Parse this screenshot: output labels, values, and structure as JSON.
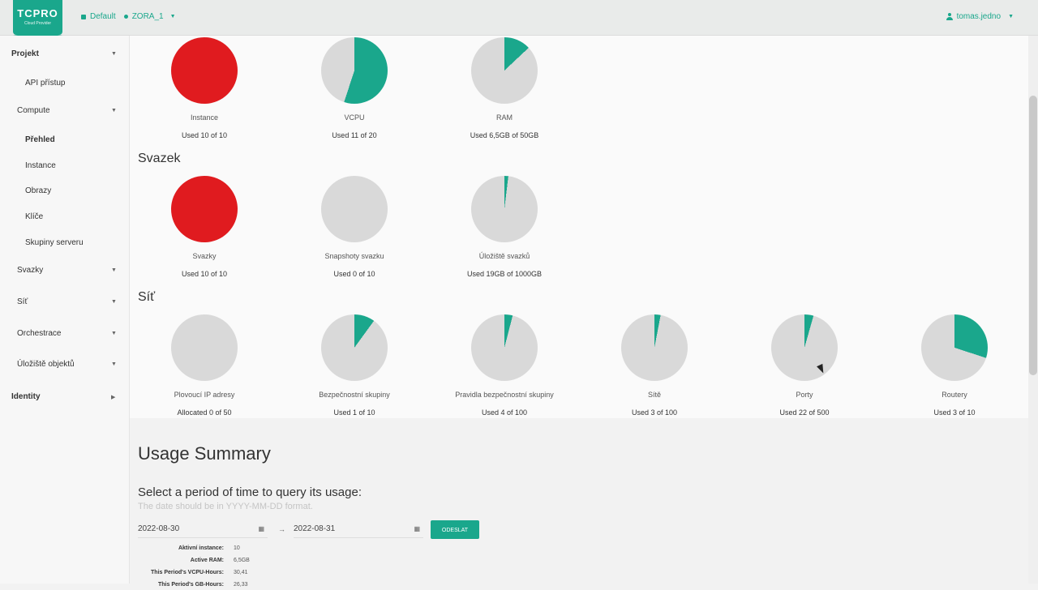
{
  "header": {
    "logo_main": "TCPRO",
    "logo_sub": "Cloud Provider",
    "domain": "Default",
    "project": "ZORA_1",
    "user": "tomas.jedno"
  },
  "sidebar": {
    "items": [
      {
        "label": "Projekt",
        "level": 0
      },
      {
        "label": "API přístup",
        "level": 2
      },
      {
        "label": "Compute",
        "level": 1
      },
      {
        "label": "Přehled",
        "level": 2
      },
      {
        "label": "Instance",
        "level": 2
      },
      {
        "label": "Obrazy",
        "level": 2
      },
      {
        "label": "Klíče",
        "level": 2
      },
      {
        "label": "Skupiny serveru",
        "level": 2
      },
      {
        "label": "Svazky",
        "level": 1
      },
      {
        "label": "Síť",
        "level": 1
      },
      {
        "label": "Orchestrace",
        "level": 1
      },
      {
        "label": "Úložiště objektů",
        "level": 1
      },
      {
        "label": "Identity",
        "level": 0
      }
    ]
  },
  "sections": {
    "volume_title": "Svazek",
    "network_title": "Síť"
  },
  "compute_pies": [
    {
      "label": "Instance",
      "used": "Used 10 of 10",
      "fraction": 1.0,
      "color": "#e01b1f"
    },
    {
      "label": "VCPU",
      "used": "Used 11 of 20",
      "fraction": 0.55,
      "color": "#1aa78c"
    },
    {
      "label": "RAM",
      "used": "Used 6,5GB of 50GB",
      "fraction": 0.13,
      "color": "#1aa78c"
    }
  ],
  "volume_pies": [
    {
      "label": "Svazky",
      "used": "Used 10 of 10",
      "fraction": 1.0,
      "color": "#e01b1f"
    },
    {
      "label": "Snapshoty svazku",
      "used": "Used 0 of 10",
      "fraction": 0.0,
      "color": "#1aa78c"
    },
    {
      "label": "Úložiště svazků",
      "used": "Used 19GB of 1000GB",
      "fraction": 0.019,
      "color": "#1aa78c"
    }
  ],
  "network_pies": [
    {
      "label": "Plovoucí IP adresy",
      "used": "Allocated 0 of 50",
      "fraction": 0.0,
      "color": "#1aa78c"
    },
    {
      "label": "Bezpečnostní skupiny",
      "used": "Used 1 of 10",
      "fraction": 0.1,
      "color": "#1aa78c"
    },
    {
      "label": "Pravidla bezpečnostní skupiny",
      "used": "Used 4 of 100",
      "fraction": 0.04,
      "color": "#1aa78c"
    },
    {
      "label": "Sítě",
      "used": "Used 3 of 100",
      "fraction": 0.03,
      "color": "#1aa78c"
    },
    {
      "label": "Porty",
      "used": "Used 22 of 500",
      "fraction": 0.044,
      "color": "#1aa78c"
    },
    {
      "label": "Routery",
      "used": "Used 3 of 10",
      "fraction": 0.3,
      "color": "#1aa78c"
    }
  ],
  "usage": {
    "title": "Usage Summary",
    "period_title": "Select a period of time to query its usage:",
    "hint": "The date should be in YYYY-MM-DD format.",
    "start_date": "2022-08-30",
    "end_date": "2022-08-31",
    "separator": "to",
    "submit_label": "ODESLAT",
    "stats": [
      {
        "key": "Aktivní instance:",
        "value": "10"
      },
      {
        "key": "Active RAM:",
        "value": "6,5GB"
      },
      {
        "key": "This Period's VCPU-Hours:",
        "value": "30,41"
      },
      {
        "key": "This Period's GB-Hours:",
        "value": "26,33"
      }
    ]
  },
  "colors": {
    "accent": "#1aa78c",
    "danger": "#e01b1f",
    "empty": "#d9d9d9"
  }
}
